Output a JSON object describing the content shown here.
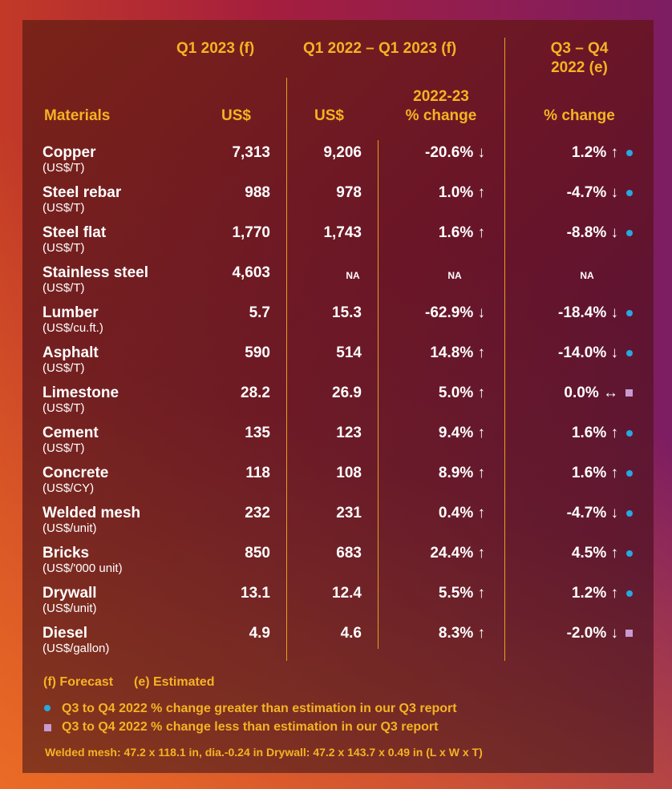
{
  "headers": {
    "q1_2023": "Q1 2023 (f)",
    "q1_2022_q1_2023": "Q1 2022 – Q1 2023 (f)",
    "q3_q4_line1": "Q3 – Q4",
    "q3_q4_line2": "2022 (e)",
    "materials": "Materials",
    "us1": "US$",
    "us2": "US$",
    "change_year": "2022-23",
    "change1": "% change",
    "change2": "% change"
  },
  "rows": [
    {
      "name": "Copper",
      "unit": "(US$/T)",
      "q1_2023": "7,313",
      "q1_2022": "9,206",
      "yoy": "-20.6% ↓",
      "qoq": "1.2% ↑",
      "marker": "dot"
    },
    {
      "name": "Steel rebar",
      "unit": "(US$/T)",
      "q1_2023": "988",
      "q1_2022": "978",
      "yoy": "1.0% ↑",
      "qoq": "-4.7% ↓",
      "marker": "dot"
    },
    {
      "name": "Steel flat",
      "unit": "(US$/T)",
      "q1_2023": "1,770",
      "q1_2022": "1,743",
      "yoy": "1.6% ↑",
      "qoq": "-8.8% ↓",
      "marker": "dot"
    },
    {
      "name": "Stainless steel",
      "unit": "(US$/T)",
      "q1_2023": "4,603",
      "q1_2022": "NA",
      "yoy": "NA",
      "qoq": "NA",
      "marker": "none"
    },
    {
      "name": "Lumber",
      "unit": "(US$/cu.ft.)",
      "q1_2023": "5.7",
      "q1_2022": "15.3",
      "yoy": "-62.9% ↓",
      "qoq": "-18.4% ↓",
      "marker": "dot"
    },
    {
      "name": "Asphalt",
      "unit": "(US$/T)",
      "q1_2023": "590",
      "q1_2022": "514",
      "yoy": "14.8% ↑",
      "qoq": "-14.0% ↓",
      "marker": "dot"
    },
    {
      "name": "Limestone",
      "unit": "(US$/T)",
      "q1_2023": "28.2",
      "q1_2022": "26.9",
      "yoy": "5.0% ↑",
      "qoq": "0.0% ↔",
      "marker": "square"
    },
    {
      "name": "Cement",
      "unit": "(US$/T)",
      "q1_2023": "135",
      "q1_2022": "123",
      "yoy": "9.4% ↑",
      "qoq": "1.6% ↑",
      "marker": "dot"
    },
    {
      "name": "Concrete",
      "unit": "(US$/CY)",
      "q1_2023": "118",
      "q1_2022": "108",
      "yoy": "8.9% ↑",
      "qoq": "1.6% ↑",
      "marker": "dot"
    },
    {
      "name": "Welded mesh",
      "unit": "(US$/unit)",
      "q1_2023": "232",
      "q1_2022": "231",
      "yoy": "0.4% ↑",
      "qoq": "-4.7% ↓",
      "marker": "dot"
    },
    {
      "name": "Bricks",
      "unit": "(US$/'000 unit)",
      "q1_2023": "850",
      "q1_2022": "683",
      "yoy": "24.4% ↑",
      "qoq": "4.5% ↑",
      "marker": "dot"
    },
    {
      "name": "Drywall",
      "unit": "(US$/unit)",
      "q1_2023": "13.1",
      "q1_2022": "12.4",
      "yoy": "5.5% ↑",
      "qoq": "1.2% ↑",
      "marker": "dot"
    },
    {
      "name": "Diesel",
      "unit": "(US$/gallon)",
      "q1_2023": "4.9",
      "q1_2022": "4.6",
      "yoy": "8.3% ↑",
      "qoq": "-2.0% ↓",
      "marker": "square"
    }
  ],
  "legend": {
    "forecast": "(f) Forecast",
    "estimated": "(e) Estimated",
    "dot_text": "Q3 to Q4 2022 % change greater than estimation in our Q3 report",
    "square_text": "Q3 to Q4 2022 % change less than estimation in our Q3 report",
    "note": "Welded mesh: 47.2 x 118.1 in, dia.-0.24 in  Drywall: 47.2 x 143.7 x 0.49 in (L x W x T)"
  },
  "colors": {
    "accent": "#f5b323",
    "dot": "#29a8e0",
    "square": "#c89ad0"
  }
}
